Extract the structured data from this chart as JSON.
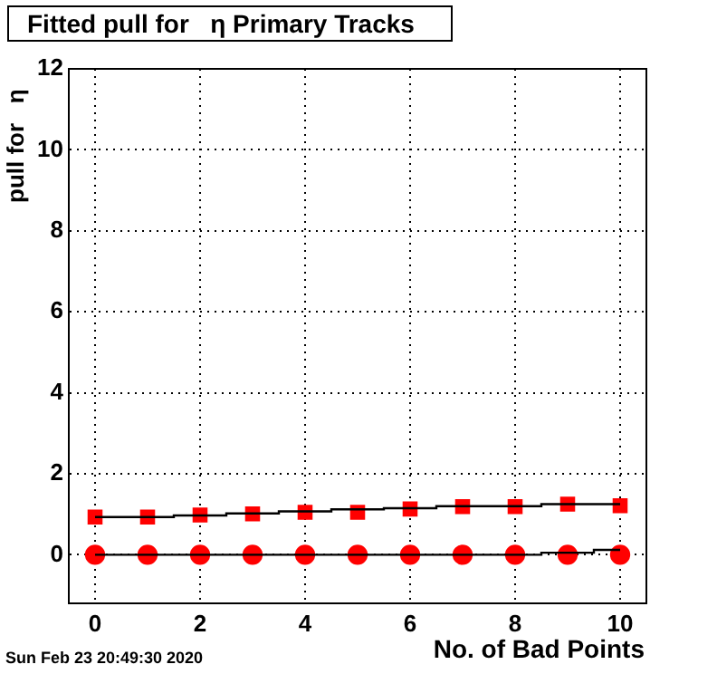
{
  "chart_data": {
    "type": "scatter",
    "title": "Fitted pull for   η Primary Tracks",
    "xlabel": "No. of Bad Points",
    "ylabel": "pull for   η",
    "annotations": [
      "Sun Feb 23 20:49:30 2020"
    ],
    "x": [
      0,
      1,
      2,
      3,
      4,
      5,
      6,
      7,
      8,
      9,
      10
    ],
    "xlim": [
      -0.5,
      10.5
    ],
    "xticks": [
      0,
      2,
      4,
      6,
      8,
      10
    ],
    "ylim": [
      -1.2,
      12
    ],
    "yticks": [
      0,
      2,
      4,
      6,
      8,
      10,
      12
    ],
    "grid": true,
    "legend": false,
    "series": [
      {
        "type": "step",
        "color": "#000000",
        "marker": "none",
        "values": [
          0.93,
          0.93,
          0.97,
          1.02,
          1.07,
          1.12,
          1.15,
          1.2,
          1.2,
          1.25,
          1.25
        ]
      },
      {
        "type": "step",
        "color": "#000000",
        "marker": "none",
        "values": [
          0,
          0,
          0,
          0,
          0,
          0,
          0,
          0,
          0,
          0.05,
          0.12
        ]
      },
      {
        "type": "scatter",
        "color": "#ff0000",
        "marker": "square",
        "values": [
          0.93,
          0.93,
          0.98,
          1.01,
          1.05,
          1.05,
          1.13,
          1.19,
          1.19,
          1.25,
          1.21
        ]
      },
      {
        "type": "scatter",
        "color": "#ff0000",
        "marker": "circle",
        "values": [
          0,
          0,
          0,
          0,
          0,
          0,
          0,
          0,
          0,
          0,
          0
        ]
      }
    ]
  }
}
